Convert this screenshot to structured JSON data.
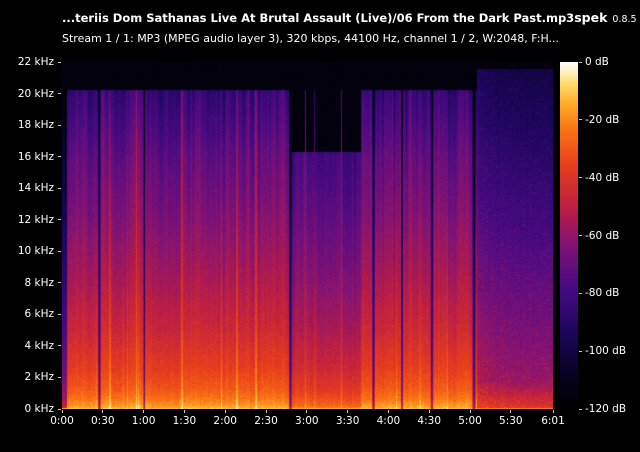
{
  "header": {
    "title": "...teriis Dom Sathanas Live At Brutal Assault (Live)/06 From the Dark Past.mp3",
    "app_name": "spek",
    "app_version": "0.8.5",
    "stream_info": "Stream 1 / 1: MP3 (MPEG audio layer 3), 320 kbps, 44100 Hz, channel 1 / 2, W:2048, F:H..."
  },
  "colors": {
    "background": "#000000",
    "text": "#ffffff"
  },
  "axes": {
    "freq_labels": [
      "22 kHz",
      "20 kHz",
      "18 kHz",
      "16 kHz",
      "14 kHz",
      "12 kHz",
      "10 kHz",
      "8 kHz",
      "6 kHz",
      "4 kHz",
      "2 kHz",
      "0 kHz"
    ],
    "time_labels": [
      {
        "text": "0:00",
        "s": 0
      },
      {
        "text": "0:30",
        "s": 30
      },
      {
        "text": "1:00",
        "s": 60
      },
      {
        "text": "1:30",
        "s": 90
      },
      {
        "text": "2:00",
        "s": 120
      },
      {
        "text": "2:30",
        "s": 150
      },
      {
        "text": "3:00",
        "s": 180
      },
      {
        "text": "3:30",
        "s": 210
      },
      {
        "text": "4:00",
        "s": 240
      },
      {
        "text": "4:30",
        "s": 270
      },
      {
        "text": "5:00",
        "s": 300
      },
      {
        "text": "5:30",
        "s": 330
      },
      {
        "text": "6:01",
        "s": 361
      }
    ],
    "db_labels": [
      {
        "text": "0 dB",
        "v": 0
      },
      {
        "text": "-20 dB",
        "v": -20
      },
      {
        "text": "-40 dB",
        "v": -40
      },
      {
        "text": "-60 dB",
        "v": -60
      },
      {
        "text": "-80 dB",
        "v": -80
      },
      {
        "text": "-100 dB",
        "v": -100
      },
      {
        "text": "-120 dB",
        "v": -120
      }
    ]
  },
  "spectrogram": {
    "duration_seconds": 361,
    "max_freq_hz": 22050,
    "db_range": [
      -120,
      0
    ],
    "seed": 1337,
    "palette": [
      [
        0.0,
        0,
        0,
        0
      ],
      [
        0.1,
        8,
        2,
        35
      ],
      [
        0.22,
        28,
        6,
        92
      ],
      [
        0.35,
        72,
        10,
        130
      ],
      [
        0.47,
        128,
        18,
        118
      ],
      [
        0.58,
        188,
        30,
        68
      ],
      [
        0.7,
        232,
        62,
        28
      ],
      [
        0.8,
        250,
        112,
        20
      ],
      [
        0.88,
        255,
        172,
        40
      ],
      [
        0.94,
        255,
        222,
        110
      ],
      [
        1.0,
        255,
        255,
        255
      ]
    ],
    "profile_db": [
      [
        0,
        -10
      ],
      [
        60,
        -13
      ],
      [
        250,
        -17
      ],
      [
        600,
        -22
      ],
      [
        1200,
        -28
      ],
      [
        2500,
        -35
      ],
      [
        5000,
        -44
      ],
      [
        8000,
        -52
      ],
      [
        12000,
        -61
      ],
      [
        16000,
        -69
      ],
      [
        18000,
        -75
      ],
      [
        20000,
        -81
      ],
      [
        20300,
        -85
      ],
      [
        22050,
        -118
      ]
    ],
    "sections": [
      {
        "start": 0,
        "end": 4,
        "gain": -34,
        "cutoff_hz": 20300,
        "style": "music"
      },
      {
        "start": 4,
        "end": 169,
        "gain": 0,
        "cutoff_hz": 20300,
        "style": "music"
      },
      {
        "start": 169,
        "end": 220,
        "gain": -9,
        "cutoff_hz": 16300,
        "style": "music"
      },
      {
        "start": 220,
        "end": 305,
        "gain": 0,
        "cutoff_hz": 20300,
        "style": "music"
      },
      {
        "start": 305,
        "end": 361,
        "gain": 0,
        "cutoff_hz": 21600,
        "style": "applause"
      }
    ],
    "gaps": [
      {
        "t": 27.5,
        "w": 1.2
      },
      {
        "t": 60.5,
        "w": 0.8
      },
      {
        "t": 168,
        "w": 1.4
      },
      {
        "t": 229,
        "w": 1.3
      },
      {
        "t": 250,
        "w": 1.0
      },
      {
        "t": 272,
        "w": 1.2
      },
      {
        "t": 303,
        "w": 1.6
      }
    ]
  }
}
